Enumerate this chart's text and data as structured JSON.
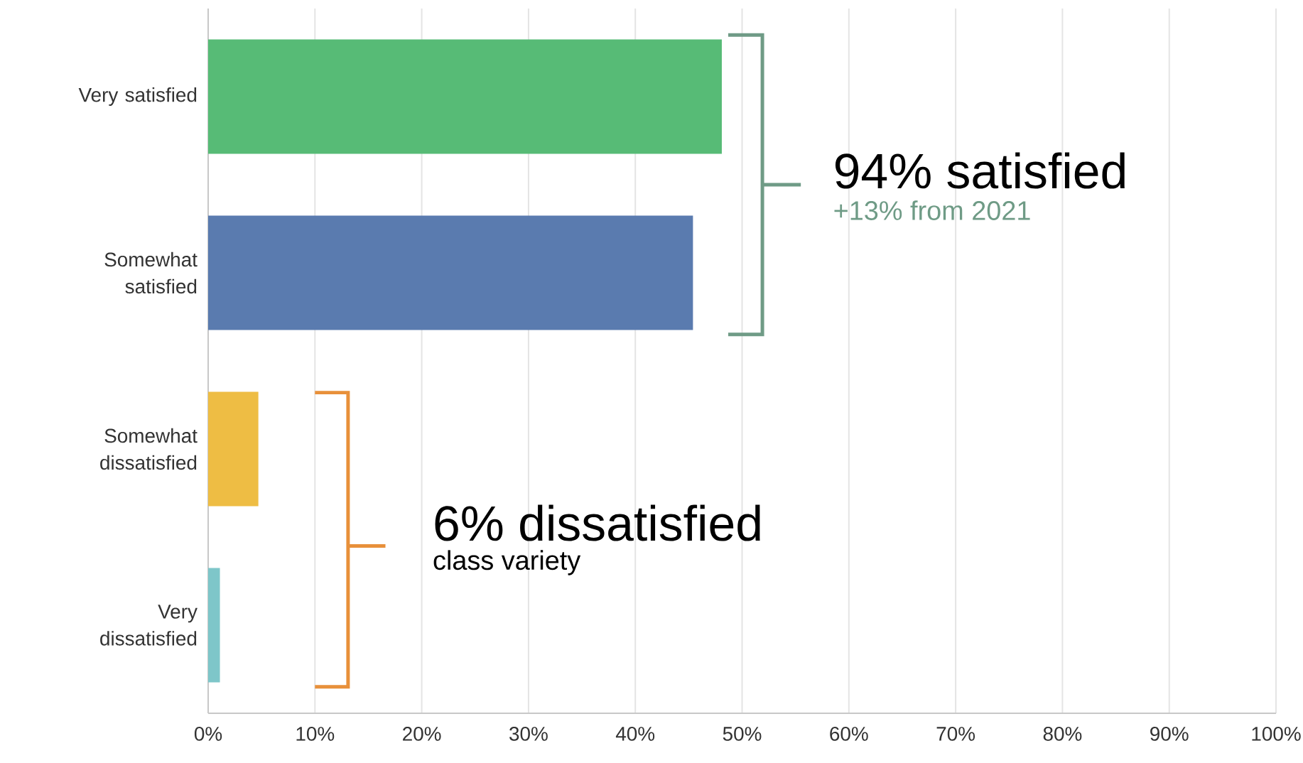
{
  "chart_data": {
    "type": "bar",
    "orientation": "horizontal",
    "categories": [
      "Very satisfied",
      "Somewhat satisfied",
      "Somewhat dissatisfied",
      "Very dissatisfied"
    ],
    "values": [
      48.1,
      45.4,
      4.7,
      1.1
    ],
    "colors": [
      "#57bb76",
      "#5a7baf",
      "#eebd44",
      "#7ec6c9"
    ],
    "xlim": [
      0,
      100
    ],
    "xticks": [
      {
        "value": 0,
        "label": "0%"
      },
      {
        "value": 10,
        "label": "10%"
      },
      {
        "value": 20,
        "label": "20%"
      },
      {
        "value": 30,
        "label": "30%"
      },
      {
        "value": 40,
        "label": "40%"
      },
      {
        "value": 50,
        "label": "50%"
      },
      {
        "value": 60,
        "label": "60%"
      },
      {
        "value": 70,
        "label": "70%"
      },
      {
        "value": 80,
        "label": "80%"
      },
      {
        "value": 90,
        "label": "90%"
      },
      {
        "value": 100,
        "label": "100%"
      }
    ],
    "grid": "x",
    "annotations": [
      "94% satisfied",
      "+13% from 2021",
      "6% dissatisfied",
      "class variety"
    ]
  }
}
